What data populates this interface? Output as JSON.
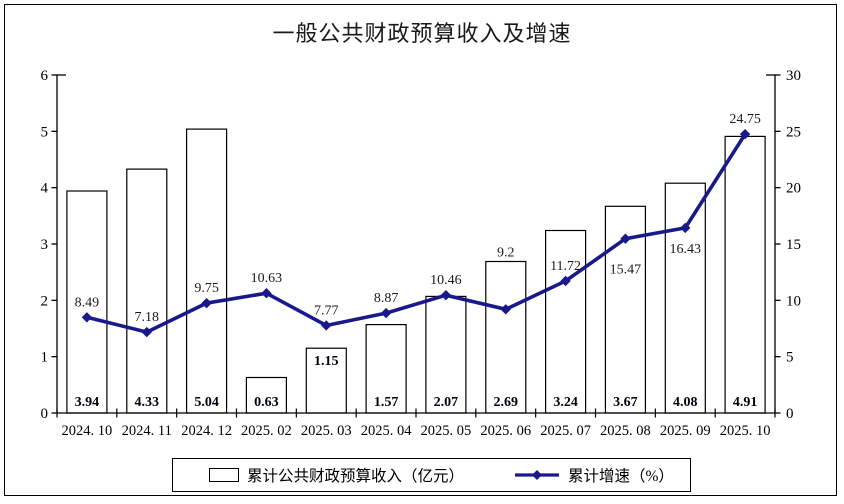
{
  "title": "一般公共财政预算收入及增速",
  "colors": {
    "line": "#19198C",
    "bar_fill": "#FFFFFF",
    "bar_stroke": "#000000",
    "axis": "#000000",
    "text": "#000000"
  },
  "chart_data": {
    "type": "bar",
    "subtype": "bar-line-combo",
    "title": "一般公共财政预算收入及增速",
    "categories": [
      "2024. 10",
      "2024. 11",
      "2024. 12",
      "2025. 02",
      "2025. 03",
      "2025. 04",
      "2025. 05",
      "2025. 06",
      "2025. 07",
      "2025. 08",
      "2025. 09",
      "2025. 10"
    ],
    "series": [
      {
        "name": "累计公共财政预算收入（亿元）",
        "type": "bar",
        "axis": "left",
        "values": [
          3.94,
          4.33,
          5.04,
          0.63,
          1.15,
          1.57,
          2.07,
          2.69,
          3.24,
          3.67,
          4.08,
          4.91
        ]
      },
      {
        "name": "累计增速（%）",
        "type": "line",
        "axis": "right",
        "values": [
          8.49,
          7.18,
          9.75,
          10.63,
          7.77,
          8.87,
          10.46,
          9.2,
          11.72,
          15.47,
          16.43,
          24.75
        ]
      }
    ],
    "left_axis": {
      "min": 0,
      "max": 6,
      "step": 1,
      "ticks": [
        0,
        1,
        2,
        3,
        4,
        5,
        6
      ]
    },
    "right_axis": {
      "min": 0,
      "max": 30,
      "step": 5,
      "ticks": [
        0,
        5,
        10,
        15,
        20,
        25,
        30
      ]
    },
    "grid": false,
    "legend_position": "bottom",
    "data_labels": true,
    "bar_label_y_overrides": {
      "4": 365
    },
    "line_label_dy_overrides": {
      "7": -53,
      "9": 35,
      "10": 25
    }
  }
}
